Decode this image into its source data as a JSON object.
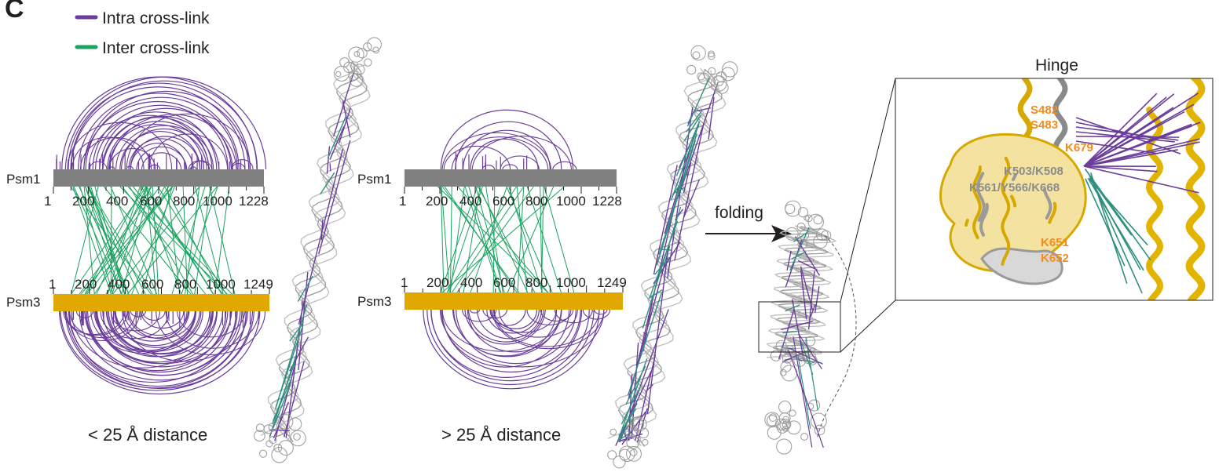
{
  "panel_letter": "C",
  "legend": {
    "intra": "Intra cross-link",
    "inter": "Inter cross-link"
  },
  "colors": {
    "intra": "#6a3d9a",
    "inter": "#1aa25f",
    "psm1": "#808080",
    "psm3": "#e0a800",
    "highlight": "#f28c1e",
    "grey_label": "#8c8c8c"
  },
  "panel_short": {
    "psm1_label": "Psm1",
    "psm3_label": "Psm3",
    "psm1_ticks": [
      "1",
      "200",
      "400",
      "600",
      "800",
      "1000",
      "1228"
    ],
    "psm3_ticks": [
      "1",
      "200",
      "400",
      "600",
      "800",
      "1000",
      "1249"
    ],
    "caption": "< 25 Å distance"
  },
  "panel_long": {
    "psm1_label": "Psm1",
    "psm3_label": "Psm3",
    "psm1_ticks": [
      "1",
      "200",
      "400",
      "600",
      "800",
      "1000",
      "1228"
    ],
    "psm3_ticks": [
      "1",
      "200",
      "400",
      "600",
      "800",
      "1000",
      "1249"
    ],
    "caption": "> 25 Å distance"
  },
  "arrow_label": "folding",
  "hinge": {
    "title": "Hinge",
    "residues_orange": [
      "S482",
      "S483",
      "K679",
      "K651",
      "K652"
    ],
    "residues_grey": [
      "K503/K508",
      "K561/Y566/K668"
    ]
  }
}
